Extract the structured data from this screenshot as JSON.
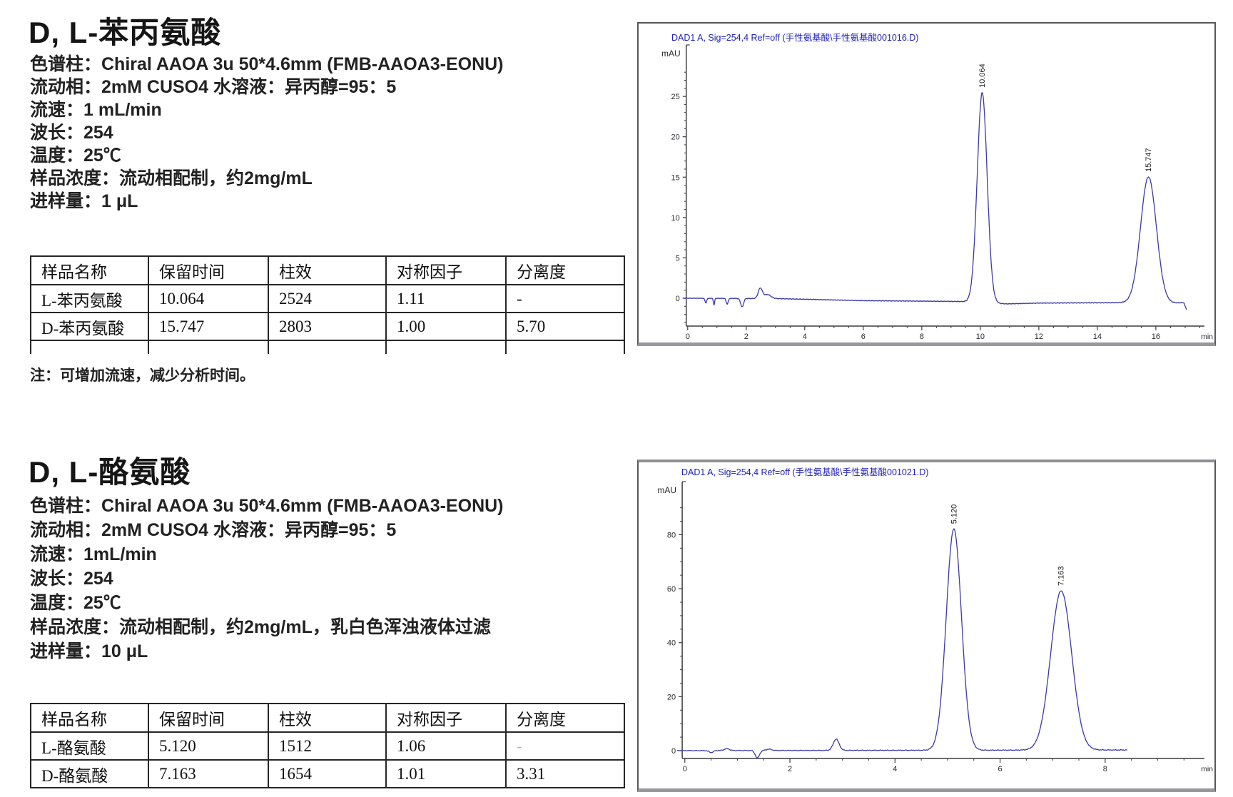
{
  "page": {
    "background": "#ffffff"
  },
  "sections": [
    {
      "title": "D, L-苯丙氨酸",
      "conditions": [
        "色谱柱：Chiral AAOA 3u 50*4.6mm (FMB-AAOA3-EONU)",
        "流动相：2mM CUSO4 水溶液：异丙醇=95：5",
        "流速：1 mL/min",
        "波长：254",
        "温度：25℃",
        "样品浓度：流动相配制，约2mg/mL",
        "进样量：1 μL"
      ],
      "table": {
        "headers": [
          "样品名称",
          "保留时间",
          "柱效",
          "对称因子",
          "分离度"
        ],
        "rows": [
          [
            "L-苯丙氨酸",
            "10.064",
            "2524",
            "1.11",
            "-"
          ],
          [
            "D-苯丙氨酸",
            "15.747",
            "2803",
            "1.00",
            "5.70"
          ]
        ]
      },
      "note": "注：可增加流速，减少分析时间。"
    },
    {
      "title": "D, L-酪氨酸",
      "conditions": [
        "色谱柱：Chiral AAOA 3u 50*4.6mm (FMB-AAOA3-EONU)",
        "流动相：2mM CUSO4 水溶液：异丙醇=95：5",
        "流速：1mL/min",
        "波长：254",
        "温度：25℃",
        "样品浓度：流动相配制，约2mg/mL，乳白色浑浊液体过滤",
        "进样量：10 μL"
      ],
      "table": {
        "headers": [
          "样品名称",
          "保留时间",
          "柱效",
          "对称因子",
          "分离度"
        ],
        "rows": [
          [
            "L-酪氨酸",
            "5.120",
            "1512",
            "1.06",
            "-"
          ],
          [
            "D-酪氨酸",
            "7.163",
            "1654",
            "1.01",
            "3.31"
          ]
        ]
      }
    }
  ],
  "chart_data": [
    {
      "type": "line",
      "title": "DAD1 A, Sig=254,4 Ref=off (手性氨基酸\\手性氨基酸001016.D)",
      "ylabel": "mAU",
      "xlabel": "min",
      "xlim": [
        -0.36,
        17.66
      ],
      "ylim": [
        -3.45,
        28.9
      ],
      "xticks": [
        0,
        2,
        4,
        6,
        8,
        10,
        12,
        14,
        16
      ],
      "yticks": [
        0,
        5,
        10,
        15,
        20,
        25
      ],
      "x_minor_step": 0.5,
      "y_minor_step": 1,
      "line_color": "#3a3aa8",
      "title_color": "#2121bd",
      "noise_amp": 0.09,
      "peaks": [
        {
          "rt": 10.064,
          "height": 26.0,
          "sigma": 0.17,
          "label": "10.064"
        },
        {
          "rt": 15.747,
          "height": 15.6,
          "sigma": 0.27,
          "label": "15.747"
        }
      ],
      "artifacts": [
        {
          "rt": 0.62,
          "height": -0.55,
          "sigma": 0.03
        },
        {
          "rt": 0.9,
          "height": -0.85,
          "sigma": 0.02
        },
        {
          "rt": 1.35,
          "height": -0.7,
          "sigma": 0.035
        },
        {
          "rt": 1.86,
          "height": -1.05,
          "sigma": 0.05
        },
        {
          "rt": 2.48,
          "height": 1.25,
          "sigma": 0.07
        },
        {
          "rt": 2.72,
          "height": 0.5,
          "sigma": 0.12
        }
      ],
      "baseline": [
        [
          -0.15,
          0
        ],
        [
          0.3,
          0
        ],
        [
          3.1,
          -0.05
        ],
        [
          6.0,
          -0.3
        ],
        [
          9.3,
          -0.4
        ],
        [
          10.9,
          -0.7
        ],
        [
          12.0,
          -0.6
        ],
        [
          14.6,
          -0.55
        ],
        [
          16.6,
          -0.6
        ],
        [
          16.95,
          -0.55
        ],
        [
          17.05,
          -1.4
        ]
      ],
      "trace_start": -0.15,
      "trace_end": 17.05
    },
    {
      "type": "line",
      "title": "DAD1 A, Sig=254,4 Ref=off (手性氨基酸\\手性氨基酸001021.D)",
      "ylabel": "mAU",
      "xlabel": "min",
      "xlim": [
        -0.35,
        9.89
      ],
      "ylim": [
        -2.9,
        92
      ],
      "xticks": [
        0,
        2,
        4,
        6,
        8
      ],
      "yticks": [
        0,
        20,
        40,
        60,
        80
      ],
      "x_minor_step": 0.5,
      "y_minor_step": 5,
      "line_color": "#3a3aa8",
      "title_color": "#2121bd",
      "noise_amp": 0.28,
      "peaks": [
        {
          "rt": 5.12,
          "height": 82.0,
          "sigma": 0.145,
          "label": "5.120"
        },
        {
          "rt": 7.163,
          "height": 59.0,
          "sigma": 0.2,
          "label": "7.163"
        }
      ],
      "artifacts": [
        {
          "rt": 0.5,
          "height": -0.7,
          "sigma": 0.04
        },
        {
          "rt": 0.8,
          "height": 0.7,
          "sigma": 0.05
        },
        {
          "rt": 1.38,
          "height": -2.7,
          "sigma": 0.04
        },
        {
          "rt": 1.6,
          "height": 0.5,
          "sigma": 0.05
        },
        {
          "rt": 2.88,
          "height": 4.2,
          "sigma": 0.055
        }
      ],
      "baseline": [
        [
          -0.15,
          0
        ],
        [
          8.42,
          0.25
        ]
      ],
      "trace_start": -0.15,
      "trace_end": 8.42
    }
  ]
}
